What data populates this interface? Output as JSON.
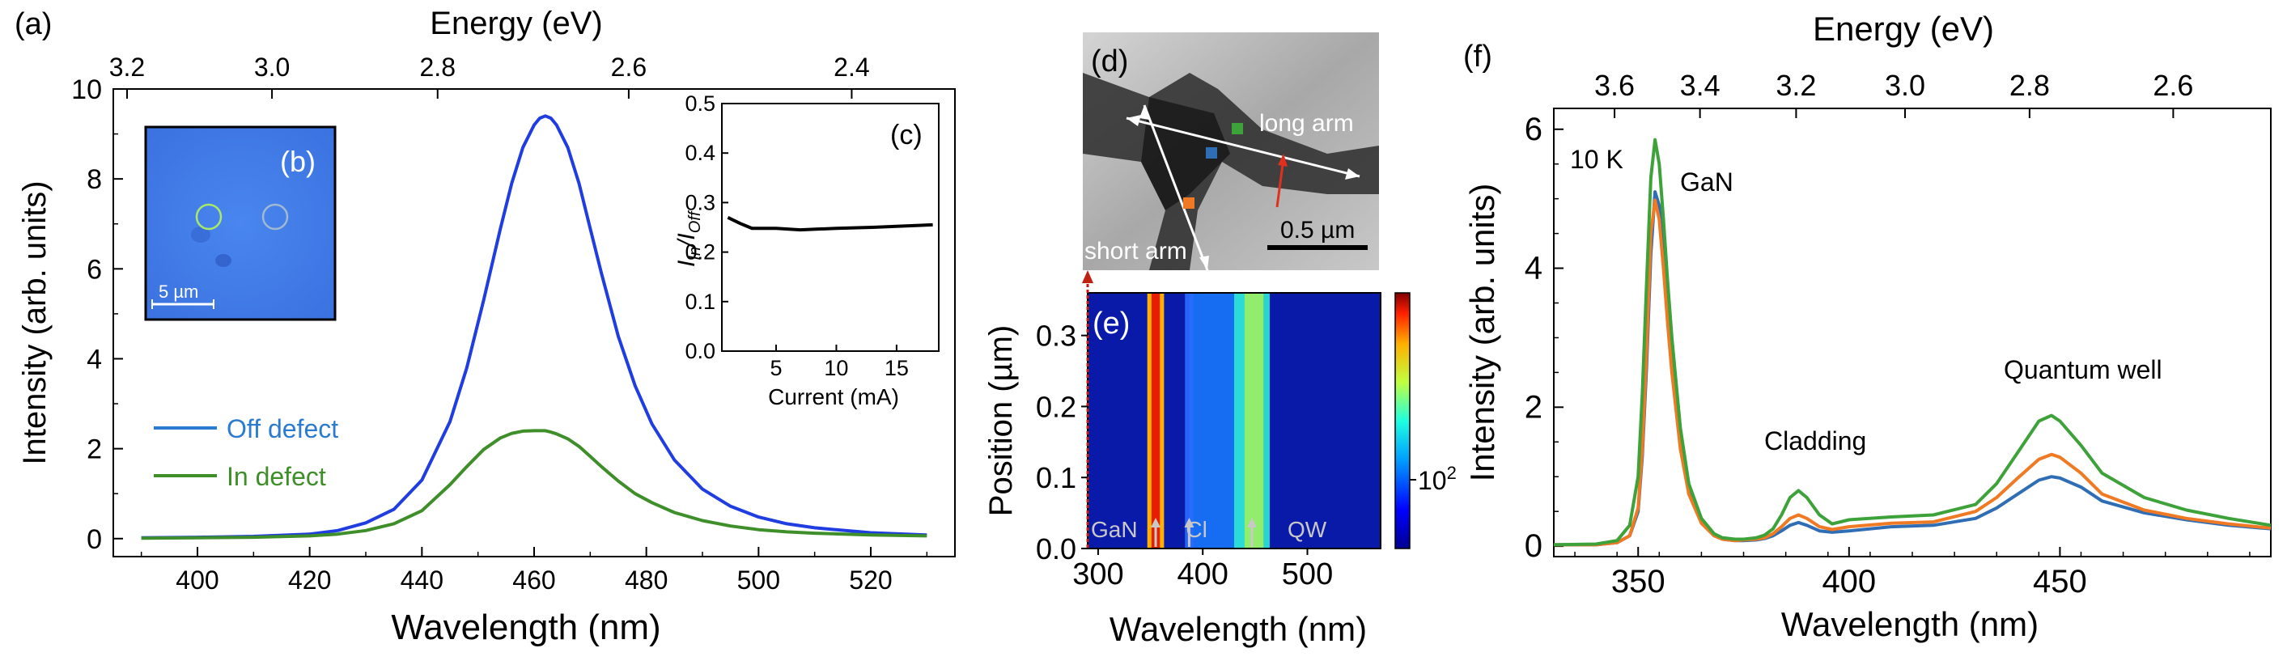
{
  "colors": {
    "off": "#1f3de0",
    "in": "#3e8e2a",
    "legend_off": "#2b7bd0",
    "c_blue": "#2f6db5",
    "c_orange": "#f07a24",
    "c_green": "#3da23a"
  },
  "panel_a": {
    "label": "(a)",
    "top_axis_title": "Energy (eV)",
    "top_ticks": [
      "3.2",
      "3.0",
      "2.8",
      "2.6",
      "2.4"
    ],
    "xlabel": "Wavelength (nm)",
    "ylabel": "Intensity (arb. units)",
    "legend": {
      "off": "Off defect",
      "in": "In defect"
    }
  },
  "panel_b": {
    "label": "(b)",
    "scalebar": "5 µm"
  },
  "panel_c": {
    "label": "(c)",
    "ylabel_main": "I",
    "ylabel_sub1": "In",
    "ylabel_slash": "/I",
    "ylabel_sub2": "Off",
    "xlabel": "Current (mA)"
  },
  "panel_d": {
    "label": "(d)",
    "long_arm": "long arm",
    "short_arm": "short arm",
    "scalebar": "0.5 µm"
  },
  "panel_e": {
    "label": "(e)",
    "xlabel": "Wavelength (nm)",
    "ylabel": "Position (µm)",
    "colorbar_label": "10",
    "colorbar_exp": "2",
    "markers": [
      "GaN",
      "Cl",
      "QW"
    ]
  },
  "panel_f": {
    "label": "(f)",
    "top_axis_title": "Energy (eV)",
    "top_ticks": [
      "3.6",
      "3.4",
      "3.2",
      "3.0",
      "2.8",
      "2.6"
    ],
    "xlabel": "Wavelength (nm)",
    "ylabel": "Intensity (arb. units)",
    "temp": "10 K",
    "annotations": {
      "gan": "GaN",
      "cladding": "Cladding",
      "qw": "Quantum well"
    }
  },
  "chart_data": [
    {
      "id": "a",
      "type": "line",
      "xlim": [
        385,
        535
      ],
      "ylim": [
        -0.4,
        10
      ],
      "x_ticks": [
        400,
        420,
        440,
        460,
        480,
        500,
        520
      ],
      "y_ticks": [
        0,
        2,
        4,
        6,
        8,
        10
      ],
      "series": [
        {
          "name": "Off defect",
          "color": "blue",
          "x": [
            390,
            400,
            410,
            420,
            425,
            430,
            435,
            440,
            445,
            448,
            451,
            454,
            456,
            458,
            460,
            461,
            462,
            463,
            464,
            466,
            468,
            470,
            472,
            475,
            478,
            481,
            485,
            490,
            495,
            500,
            505,
            510,
            520,
            530
          ],
          "y": [
            0.02,
            0.03,
            0.05,
            0.1,
            0.18,
            0.35,
            0.65,
            1.3,
            2.6,
            3.8,
            5.3,
            6.9,
            7.9,
            8.7,
            9.2,
            9.35,
            9.4,
            9.35,
            9.2,
            8.7,
            7.9,
            6.9,
            5.9,
            4.5,
            3.4,
            2.55,
            1.75,
            1.1,
            0.72,
            0.48,
            0.33,
            0.24,
            0.13,
            0.08
          ]
        },
        {
          "name": "In defect",
          "color": "green",
          "x": [
            390,
            400,
            410,
            420,
            425,
            430,
            435,
            440,
            445,
            448,
            451,
            454,
            456,
            458,
            460,
            461,
            462,
            463,
            464,
            466,
            468,
            470,
            472,
            475,
            478,
            481,
            485,
            490,
            495,
            500,
            505,
            510,
            520,
            530
          ],
          "y": [
            0.01,
            0.02,
            0.03,
            0.06,
            0.1,
            0.18,
            0.33,
            0.62,
            1.2,
            1.6,
            1.98,
            2.24,
            2.34,
            2.39,
            2.4,
            2.4,
            2.4,
            2.37,
            2.33,
            2.22,
            2.05,
            1.83,
            1.6,
            1.28,
            1.0,
            0.8,
            0.58,
            0.4,
            0.28,
            0.2,
            0.15,
            0.12,
            0.08,
            0.06
          ]
        }
      ]
    },
    {
      "id": "c",
      "type": "line",
      "xlim": [
        0.5,
        18.5
      ],
      "ylim": [
        0,
        0.5
      ],
      "x_ticks": [
        5,
        10,
        15
      ],
      "y_ticks": [
        0.0,
        0.1,
        0.2,
        0.3,
        0.4,
        0.5
      ],
      "series": [
        {
          "name": "IIn/IOff",
          "x": [
            1,
            2,
            3,
            5,
            7,
            10,
            13,
            18
          ],
          "y": [
            0.27,
            0.258,
            0.248,
            0.248,
            0.245,
            0.248,
            0.25,
            0.255
          ]
        }
      ]
    },
    {
      "id": "e",
      "type": "heatmap",
      "xlim": [
        290,
        570
      ],
      "ylim": [
        0,
        0.36
      ],
      "x_ticks": [
        300,
        400,
        500
      ],
      "y_ticks": [
        0.0,
        0.1,
        0.2,
        0.3
      ],
      "marker_positions": [
        355,
        387,
        447
      ]
    },
    {
      "id": "f",
      "type": "line",
      "xlim": [
        330,
        500
      ],
      "ylim": [
        -0.15,
        6.3
      ],
      "x_ticks": [
        350,
        400,
        450
      ],
      "y_ticks": [
        0,
        2,
        4,
        6
      ],
      "x": [
        330,
        340,
        345,
        348,
        350,
        351,
        352,
        353,
        354,
        355,
        356,
        357,
        358,
        360,
        362,
        365,
        368,
        370,
        373,
        375,
        378,
        380,
        382,
        384,
        386,
        388,
        390,
        393,
        396,
        400,
        410,
        420,
        430,
        435,
        440,
        445,
        448,
        450,
        455,
        460,
        470,
        480,
        490,
        500
      ],
      "series": [
        {
          "name": "blue",
          "color": "blue",
          "y": [
            0.02,
            0.02,
            0.05,
            0.15,
            0.5,
            1.3,
            2.6,
            4.2,
            5.1,
            4.9,
            4.2,
            3.4,
            2.7,
            1.5,
            0.8,
            0.35,
            0.15,
            0.1,
            0.08,
            0.08,
            0.09,
            0.11,
            0.15,
            0.22,
            0.3,
            0.34,
            0.3,
            0.22,
            0.2,
            0.22,
            0.28,
            0.3,
            0.4,
            0.55,
            0.75,
            0.95,
            1.0,
            0.98,
            0.85,
            0.65,
            0.48,
            0.38,
            0.3,
            0.25
          ]
        },
        {
          "name": "orange",
          "color": "orange",
          "y": [
            0.02,
            0.02,
            0.05,
            0.15,
            0.55,
            1.4,
            2.8,
            4.5,
            4.98,
            4.7,
            4.0,
            3.2,
            2.5,
            1.4,
            0.75,
            0.33,
            0.15,
            0.1,
            0.08,
            0.09,
            0.1,
            0.12,
            0.18,
            0.28,
            0.4,
            0.45,
            0.4,
            0.28,
            0.24,
            0.28,
            0.33,
            0.35,
            0.5,
            0.7,
            0.98,
            1.25,
            1.32,
            1.28,
            1.05,
            0.75,
            0.52,
            0.4,
            0.32,
            0.26
          ]
        },
        {
          "name": "green",
          "color": "green",
          "y": [
            0.02,
            0.03,
            0.08,
            0.3,
            1.0,
            2.2,
            3.8,
            5.3,
            5.85,
            5.5,
            4.7,
            3.8,
            3.0,
            1.7,
            0.9,
            0.4,
            0.18,
            0.12,
            0.1,
            0.1,
            0.12,
            0.16,
            0.25,
            0.45,
            0.7,
            0.8,
            0.7,
            0.45,
            0.32,
            0.38,
            0.42,
            0.45,
            0.6,
            0.9,
            1.35,
            1.8,
            1.88,
            1.8,
            1.45,
            1.05,
            0.7,
            0.52,
            0.4,
            0.3
          ]
        }
      ]
    }
  ]
}
